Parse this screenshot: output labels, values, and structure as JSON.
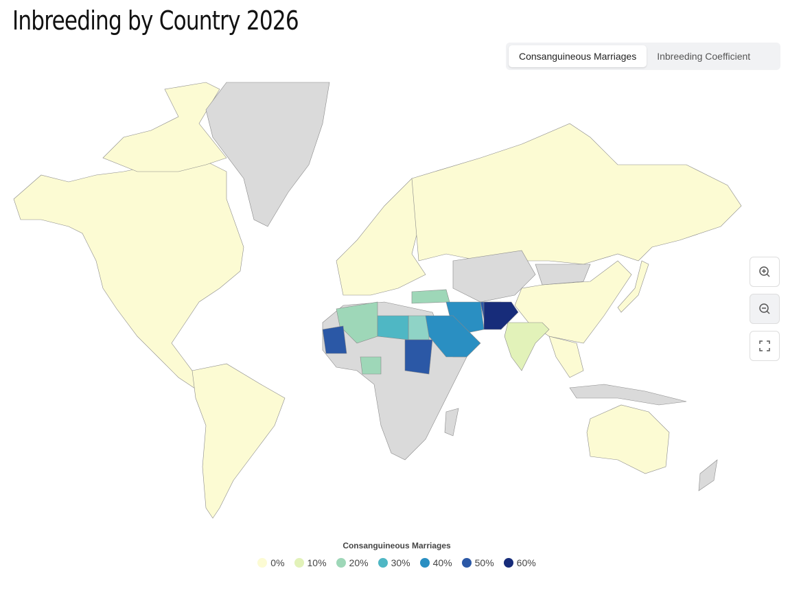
{
  "header": {
    "title": "Inbreeding by Country 2026"
  },
  "tabs": [
    "Consanguineous Marriages",
    "Inbreeding Coefficient"
  ],
  "legend": {
    "title": "Consanguineous Marriages",
    "items": [
      {
        "label": "0%",
        "color": "#fcfbd3"
      },
      {
        "label": "10%",
        "color": "#e2f2b9"
      },
      {
        "label": "20%",
        "color": "#9ed7b8"
      },
      {
        "label": "30%",
        "color": "#4fb7c4"
      },
      {
        "label": "40%",
        "color": "#2a8fc2"
      },
      {
        "label": "50%",
        "color": "#2b58a6"
      },
      {
        "label": "60%",
        "color": "#172c7a"
      }
    ]
  }
}
